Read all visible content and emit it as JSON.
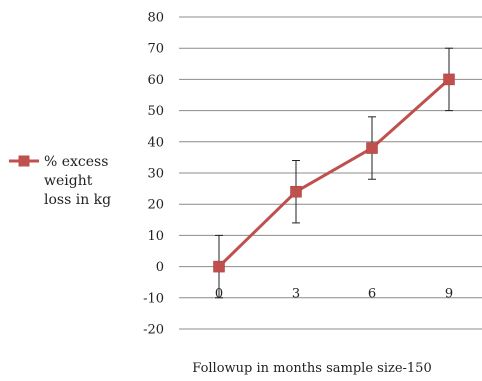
{
  "chart_data": {
    "type": "line",
    "title": "",
    "xlabel": "Followup in months sample size-150",
    "ylabel": "",
    "categories": [
      "0",
      "3",
      "6",
      "9"
    ],
    "ylim": [
      -20,
      80
    ],
    "y_ticks": [
      80,
      70,
      60,
      50,
      40,
      30,
      20,
      10,
      0,
      -10,
      -20
    ],
    "grid": true,
    "legend_position": "left",
    "series": [
      {
        "name": "% excess weight loss in kg",
        "name_lines": [
          "% excess",
          "weight",
          "loss in kg"
        ],
        "values": [
          0,
          24,
          38,
          60
        ],
        "error_low": [
          -10,
          14,
          28,
          50
        ],
        "error_high": [
          10,
          34,
          48,
          70
        ],
        "color": "#c0504d",
        "marker": "square"
      }
    ]
  }
}
